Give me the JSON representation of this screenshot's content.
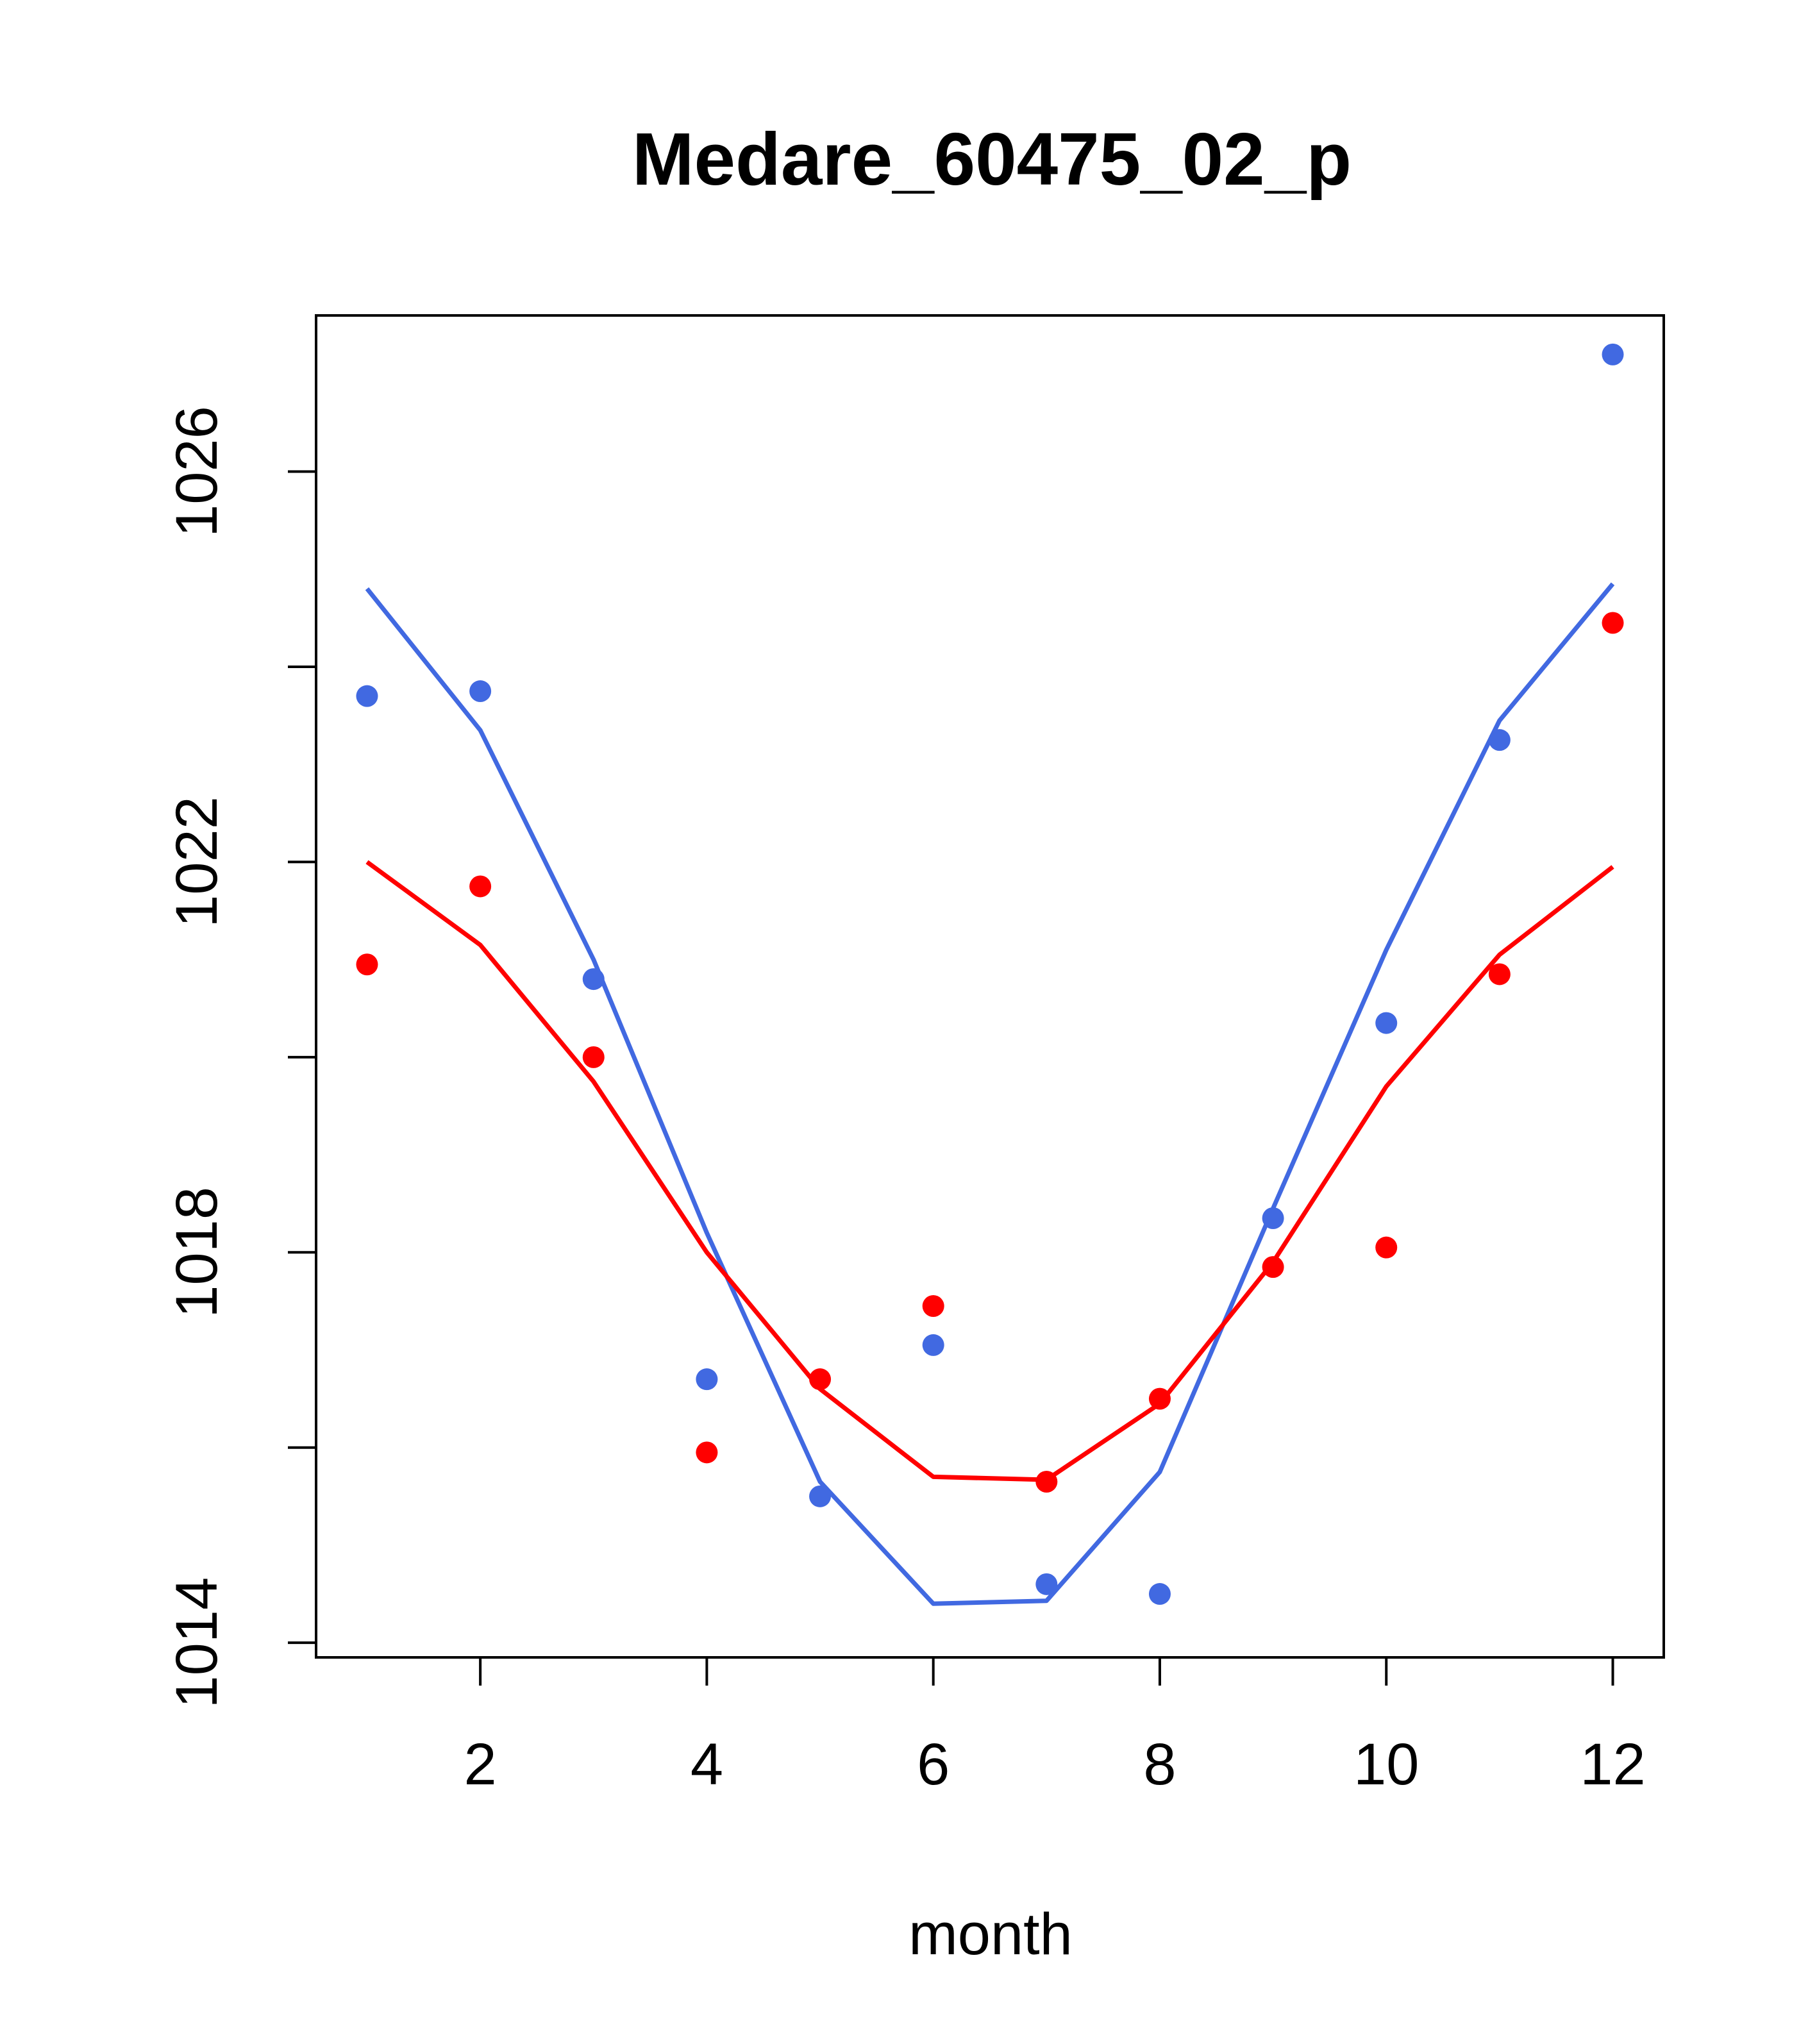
{
  "chart_data": {
    "type": "line",
    "title": "Medare_60475_02_p",
    "xlabel": "month",
    "ylabel": "",
    "xlim": [
      0.55,
      12.45
    ],
    "ylim": [
      1013.85,
      1027.6
    ],
    "x_ticks": [
      2,
      4,
      6,
      8,
      10,
      12
    ],
    "y_ticks": [
      1014,
      1016,
      1018,
      1020,
      1022,
      1024,
      1026
    ],
    "y_tick_labels": [
      {
        "value": 1014,
        "label": "1014"
      },
      {
        "value": 1018,
        "label": "1018"
      },
      {
        "value": 1022,
        "label": "1022"
      },
      {
        "value": 1026,
        "label": "1026"
      }
    ],
    "x": [
      1,
      2,
      3,
      4,
      5,
      6,
      7,
      8,
      9,
      10,
      11,
      12
    ],
    "series": [
      {
        "name": "blue",
        "color": "#4169E1",
        "points": [
          1023.7,
          1023.75,
          1020.8,
          1016.7,
          1015.5,
          1017.05,
          1014.6,
          1014.5,
          1018.35,
          1020.35,
          1023.25,
          1027.2
        ],
        "line": [
          1024.8,
          1023.35,
          1021.0,
          1018.2,
          1015.65,
          1014.4,
          1014.43,
          1015.75,
          1018.45,
          1021.1,
          1023.45,
          1024.85
        ]
      },
      {
        "name": "red",
        "color": "#FF0000",
        "points": [
          1020.95,
          1021.75,
          1020.0,
          1015.95,
          1016.7,
          1017.45,
          1015.65,
          1016.5,
          1017.85,
          1018.05,
          1020.85,
          1024.45
        ],
        "line": [
          1022.0,
          1021.15,
          1019.75,
          1018.0,
          1016.6,
          1015.7,
          1015.67,
          1016.45,
          1017.9,
          1019.7,
          1021.05,
          1021.95
        ]
      }
    ]
  }
}
